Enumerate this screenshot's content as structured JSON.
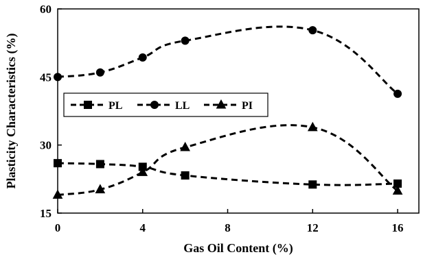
{
  "chart_data": {
    "type": "line",
    "title": "",
    "xlabel": "Gas Oil Content (%)",
    "ylabel": "Plasticity Characteristics (%)",
    "xlim": [
      0,
      17
    ],
    "ylim": [
      15,
      60
    ],
    "xticks": [
      "0",
      "4",
      "8",
      "12",
      "16"
    ],
    "xtick_values": [
      0,
      4,
      8,
      12,
      16
    ],
    "yticks": [
      "15",
      "30",
      "45",
      "60"
    ],
    "ytick_values": [
      15,
      30,
      45,
      60
    ],
    "grid": false,
    "legend_position": "middle-left",
    "line_style": "dashed",
    "line_color": "#000000",
    "series": [
      {
        "name": "PL",
        "marker": "square",
        "x": [
          0,
          2,
          4,
          6,
          12,
          16
        ],
        "y": [
          26,
          25.8,
          25.2,
          23.3,
          21.3,
          21.5
        ]
      },
      {
        "name": "LL",
        "marker": "circle",
        "x": [
          0,
          2,
          4,
          6,
          12,
          16
        ],
        "y": [
          45,
          46,
          49.3,
          53,
          55.3,
          41.3
        ]
      },
      {
        "name": "PI",
        "marker": "triangle",
        "x": [
          0,
          2,
          4,
          6,
          12,
          16
        ],
        "y": [
          19,
          20.2,
          24,
          29.5,
          33.9,
          19.9
        ]
      }
    ]
  }
}
